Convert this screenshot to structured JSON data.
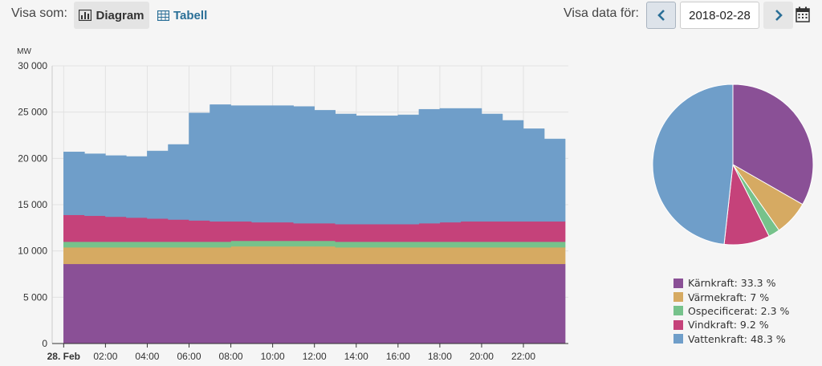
{
  "toolbar": {
    "visa_som_label": "Visa som:",
    "diagram_label": "Diagram",
    "tabell_label": "Tabell",
    "visa_data_label": "Visa data för:",
    "date_value": "2018-02-28"
  },
  "colors": {
    "karnkraft": "#8a5096",
    "varmekraft": "#d6aa62",
    "ospecificerat": "#76c28b",
    "vindkraft": "#c5427a",
    "vattenkraft": "#6f9ec9",
    "accent": "#2a6f97"
  },
  "chart_data": [
    {
      "type": "area",
      "stacking": "normal",
      "step": true,
      "ylabel": "MW",
      "ylim": [
        0,
        30000
      ],
      "yticks": [
        0,
        5000,
        10000,
        15000,
        20000,
        25000,
        30000
      ],
      "ytick_labels": [
        "0",
        "5 000",
        "10 000",
        "15 000",
        "20 000",
        "25 000",
        "30 000"
      ],
      "xtick_labels": [
        "28. Feb",
        "02:00",
        "04:00",
        "06:00",
        "08:00",
        "10:00",
        "12:00",
        "14:00",
        "16:00",
        "18:00",
        "20:00",
        "22:00"
      ],
      "x": [
        "00:00",
        "01:00",
        "02:00",
        "03:00",
        "04:00",
        "05:00",
        "06:00",
        "07:00",
        "08:00",
        "09:00",
        "10:00",
        "11:00",
        "12:00",
        "13:00",
        "14:00",
        "15:00",
        "16:00",
        "17:00",
        "18:00",
        "19:00",
        "20:00",
        "21:00",
        "22:00",
        "23:00"
      ],
      "grid": true,
      "series": [
        {
          "name": "Kärnkraft",
          "color": "#8a5096",
          "values": [
            8600,
            8600,
            8600,
            8600,
            8600,
            8600,
            8600,
            8600,
            8600,
            8600,
            8600,
            8600,
            8600,
            8600,
            8600,
            8600,
            8600,
            8600,
            8600,
            8600,
            8600,
            8600,
            8600,
            8600
          ]
        },
        {
          "name": "Värmekraft",
          "color": "#d6aa62",
          "values": [
            1800,
            1800,
            1800,
            1800,
            1800,
            1800,
            1800,
            1800,
            1900,
            1900,
            1900,
            1900,
            1900,
            1800,
            1800,
            1800,
            1800,
            1800,
            1800,
            1800,
            1800,
            1800,
            1800,
            1800
          ]
        },
        {
          "name": "Ospecificerat",
          "color": "#76c28b",
          "values": [
            600,
            600,
            600,
            600,
            600,
            600,
            600,
            600,
            600,
            600,
            600,
            600,
            600,
            600,
            600,
            600,
            600,
            600,
            600,
            600,
            600,
            600,
            600,
            600
          ]
        },
        {
          "name": "Vindkraft",
          "color": "#c5427a",
          "values": [
            2900,
            2800,
            2700,
            2600,
            2500,
            2400,
            2300,
            2200,
            2100,
            2000,
            2000,
            1900,
            1900,
            1900,
            1900,
            1900,
            1900,
            2000,
            2100,
            2200,
            2200,
            2200,
            2200,
            2200
          ]
        },
        {
          "name": "Vattenkraft",
          "color": "#6f9ec9",
          "values": [
            6800,
            6700,
            6600,
            6600,
            7300,
            8100,
            11600,
            12600,
            12500,
            12600,
            12600,
            12600,
            12200,
            11900,
            11700,
            11700,
            11800,
            12300,
            12300,
            12200,
            11600,
            10900,
            10000,
            8900
          ]
        }
      ]
    },
    {
      "type": "pie",
      "slices": [
        {
          "name": "Kärnkraft",
          "value": 33.3,
          "label": "Kärnkraft: 33.3 %",
          "color": "#8a5096"
        },
        {
          "name": "Värmekraft",
          "value": 7,
          "label": "Värmekraft: 7 %",
          "color": "#d6aa62"
        },
        {
          "name": "Ospecificerat",
          "value": 2.3,
          "label": "Ospecificerat: 2.3 %",
          "color": "#76c28b"
        },
        {
          "name": "Vindkraft",
          "value": 9.2,
          "label": "Vindkraft: 9.2 %",
          "color": "#c5427a"
        },
        {
          "name": "Vattenkraft",
          "value": 48.3,
          "label": "Vattenkraft: 48.3 %",
          "color": "#6f9ec9"
        }
      ],
      "legend_position": "bottom-right"
    }
  ]
}
